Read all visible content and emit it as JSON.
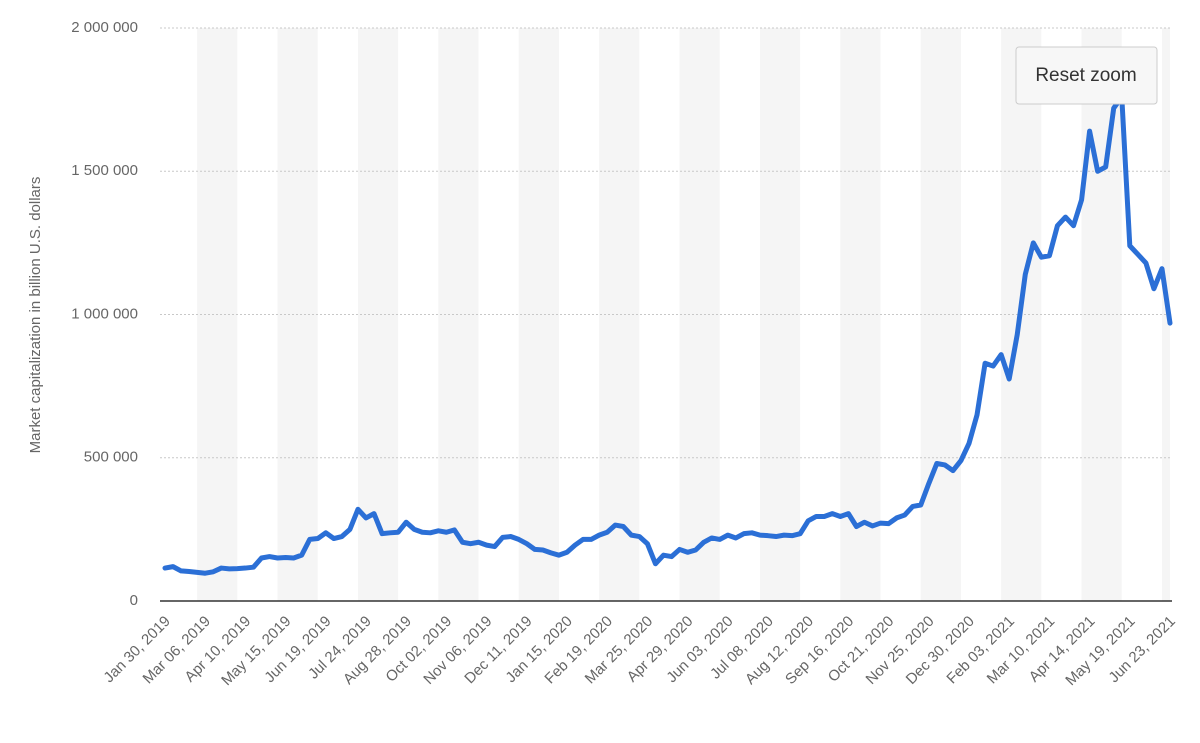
{
  "chart_data": {
    "type": "line",
    "y_label": "Market capitalization in billion U.S. dollars",
    "categories": [
      "Jan 30, 2019",
      null,
      null,
      null,
      null,
      "Mar 06, 2019",
      null,
      null,
      null,
      null,
      "Apr 10, 2019",
      null,
      null,
      null,
      null,
      "May 15, 2019",
      null,
      null,
      null,
      null,
      "Jun 19, 2019",
      null,
      null,
      null,
      null,
      "Jul 24, 2019",
      null,
      null,
      null,
      null,
      "Aug 28, 2019",
      null,
      null,
      null,
      null,
      "Oct 02, 2019",
      null,
      null,
      null,
      null,
      "Nov 06, 2019",
      null,
      null,
      null,
      null,
      "Dec 11, 2019",
      null,
      null,
      null,
      null,
      "Jan 15, 2020",
      null,
      null,
      null,
      null,
      "Feb 19, 2020",
      null,
      null,
      null,
      null,
      "Mar 25, 2020",
      null,
      null,
      null,
      null,
      "Apr 29, 2020",
      null,
      null,
      null,
      null,
      "Jun 03, 2020",
      null,
      null,
      null,
      null,
      "Jul 08, 2020",
      null,
      null,
      null,
      null,
      "Aug 12, 2020",
      null,
      null,
      null,
      null,
      "Sep 16, 2020",
      null,
      null,
      null,
      null,
      "Oct 21, 2020",
      null,
      null,
      null,
      null,
      "Nov 25, 2020",
      null,
      null,
      null,
      null,
      "Dec 30, 2020",
      null,
      null,
      null,
      null,
      "Feb 03, 2021",
      null,
      null,
      null,
      null,
      "Mar 10, 2021",
      null,
      null,
      null,
      null,
      "Apr 14, 2021",
      null,
      null,
      null,
      null,
      "May 19, 2021",
      null,
      null,
      null,
      null,
      "Jun 23, 2021"
    ],
    "series": [
      {
        "color": "#2b6fd6",
        "values": [
          115000,
          120000,
          105000,
          103000,
          100000,
          97000,
          102000,
          115000,
          112000,
          113000,
          115000,
          118000,
          150000,
          155000,
          150000,
          152000,
          150000,
          160000,
          215000,
          218000,
          238000,
          218000,
          225000,
          250000,
          320000,
          290000,
          305000,
          235000,
          238000,
          240000,
          275000,
          250000,
          240000,
          238000,
          245000,
          240000,
          248000,
          205000,
          200000,
          205000,
          195000,
          190000,
          222000,
          225000,
          215000,
          200000,
          180000,
          178000,
          168000,
          160000,
          170000,
          195000,
          215000,
          215000,
          230000,
          240000,
          265000,
          260000,
          230000,
          225000,
          200000,
          130000,
          160000,
          155000,
          180000,
          170000,
          178000,
          205000,
          220000,
          215000,
          230000,
          220000,
          235000,
          238000,
          230000,
          228000,
          225000,
          230000,
          228000,
          235000,
          280000,
          295000,
          295000,
          305000,
          295000,
          305000,
          260000,
          275000,
          262000,
          272000,
          270000,
          290000,
          300000,
          330000,
          335000,
          410000,
          480000,
          475000,
          455000,
          490000,
          550000,
          650000,
          830000,
          820000,
          860000,
          775000,
          930000,
          1140000,
          1250000,
          1200000,
          1205000,
          1310000,
          1340000,
          1310000,
          1400000,
          1640000,
          1500000,
          1515000,
          1720000,
          1760000,
          1240000,
          1210000,
          1180000,
          1090000,
          1160000,
          970000
        ]
      }
    ],
    "ylim": [
      0,
      2000000
    ],
    "yticks": [
      0,
      {
        "value": 500000,
        "label": "500 000"
      },
      {
        "value": 1000000,
        "label": "1 000 000"
      },
      {
        "value": 1500000,
        "label": "1 500 000"
      },
      {
        "value": 2000000,
        "label": "2 000 000"
      }
    ],
    "grid": true,
    "reset_button": "Reset zoom"
  }
}
